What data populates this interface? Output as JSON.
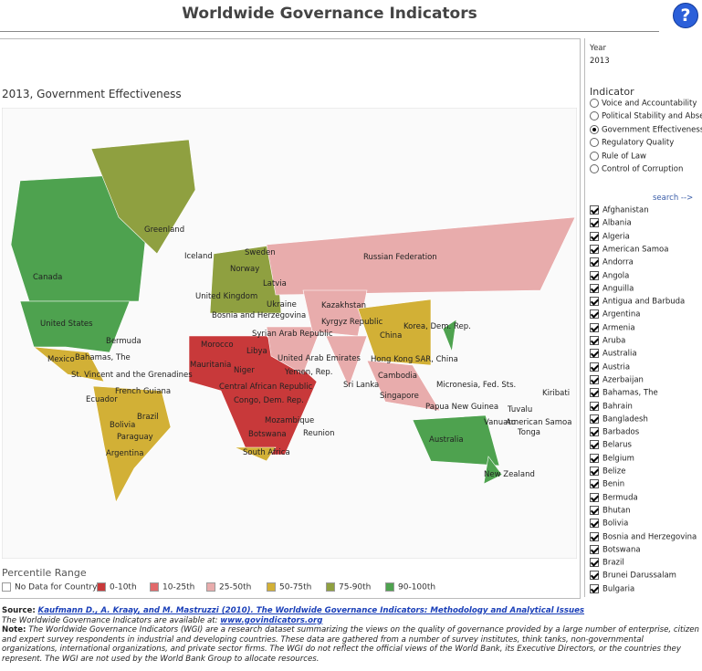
{
  "header": {
    "title": "Worldwide Governance Indicators",
    "help": "?"
  },
  "map": {
    "title": "2013, Government Effectiveness",
    "labels": [
      "Greenland",
      "Iceland",
      "Canada",
      "Sweden",
      "Norway",
      "Russian Federation",
      "Latvia",
      "United Kingdom",
      "Ukraine",
      "Kazakhstan",
      "Bosnia and Herzegovina",
      "Kyrgyz Republic",
      "United States",
      "Korea, Dem. Rep.",
      "Bermuda",
      "China",
      "Syrian Arab Republic",
      "Morocco",
      "Bahamas, The",
      "Libya",
      "Mexico",
      "United Arab Emirates",
      "Hong Kong SAR, China",
      "Mauritania",
      "Niger",
      "Yemen, Rep.",
      "St. Vincent and the Grenadines",
      "Cambodia",
      "Micronesia, Fed. Sts.",
      "Sri Lanka",
      "Central African Republic",
      "French Guiana",
      "Kiribati",
      "Singapore",
      "Ecuador",
      "Congo, Dem. Rep.",
      "Papua New Guinea",
      "Tuvalu",
      "Brazil",
      "Bolivia",
      "Vanuatu",
      "American Samoa",
      "Mozambique",
      "Tonga",
      "Reunion",
      "Botswana",
      "Paraguay",
      "Australia",
      "South Africa",
      "Argentina",
      "New Zealand"
    ]
  },
  "legend": {
    "title": "Percentile Range",
    "items": [
      {
        "label": "No Data for Country",
        "color": "#ffffff"
      },
      {
        "label": "0-10th",
        "color": "#c8393a"
      },
      {
        "label": "10-25th",
        "color": "#e2696a"
      },
      {
        "label": "25-50th",
        "color": "#e8acac"
      },
      {
        "label": "50-75th",
        "color": "#d2b036"
      },
      {
        "label": "75-90th",
        "color": "#8fa040"
      },
      {
        "label": "90-100th",
        "color": "#4ea24f"
      }
    ]
  },
  "year": {
    "label": "Year",
    "value": "2013"
  },
  "indicator": {
    "label": "Indicator",
    "options": [
      "Voice and Accountability",
      "Political Stability and Abse.",
      "Government Effectiveness",
      "Regulatory Quality",
      "Rule of Law",
      "Control of Corruption"
    ],
    "selected": 2
  },
  "search": "search -->",
  "countries": [
    "Afghanistan",
    "Albania",
    "Algeria",
    "American Samoa",
    "Andorra",
    "Angola",
    "Anguilla",
    "Antigua and Barbuda",
    "Argentina",
    "Armenia",
    "Aruba",
    "Australia",
    "Austria",
    "Azerbaijan",
    "Bahamas, The",
    "Bahrain",
    "Bangladesh",
    "Barbados",
    "Belarus",
    "Belgium",
    "Belize",
    "Benin",
    "Bermuda",
    "Bhutan",
    "Bolivia",
    "Bosnia and Herzegovina",
    "Botswana",
    "Brazil",
    "Brunei Darussalam",
    "Bulgaria"
  ],
  "footer": {
    "source_label": "Source:",
    "source_link": "Kaufmann D., A. Kraay, and M. Mastruzzi (2010). The Worldwide Governance Indicators: Methodology and Analytical Issues",
    "available": "The Worldwide Governance Indicators are available at:",
    "available_link": "www.govindicators.org",
    "note_label": "Note:",
    "note": "The Worldwide Governance Indicators (WGI) are a research dataset summarizing the views on the quality of governance provided by a large number of enterprise, citizen and expert survey respondents in industrial and developing countries. These data are gathered from a number of survey institutes, think tanks, non-governmental organizations, international organizations, and private sector firms. The WGI do not reflect the official views of the World Bank, its Executive Directors, or the countries they represent. The WGI are not used by the World Bank Group to allocate resources."
  }
}
